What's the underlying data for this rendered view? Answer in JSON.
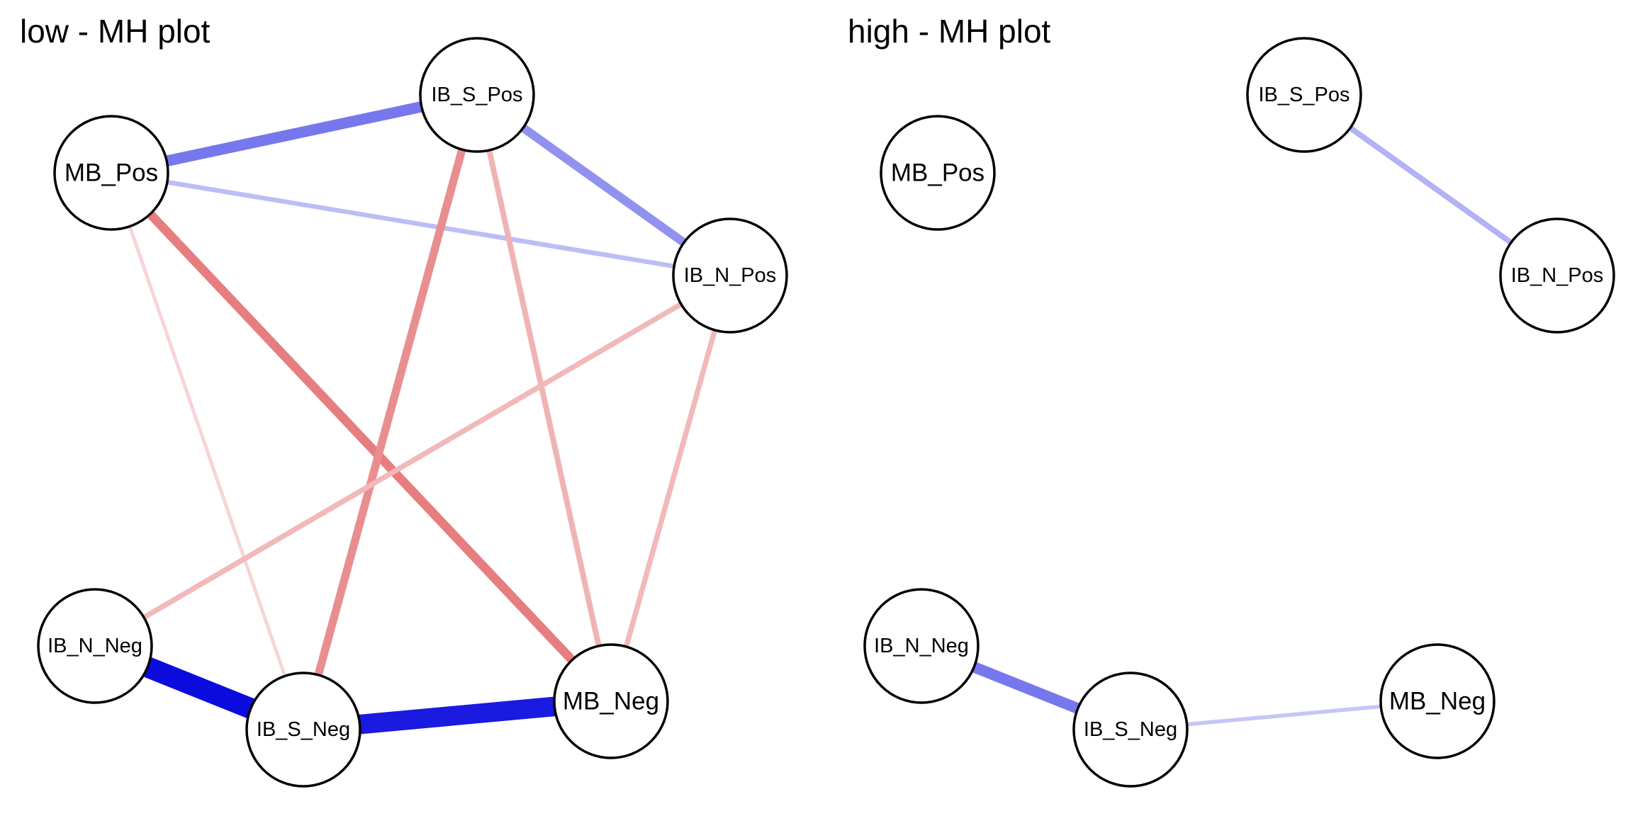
{
  "panels": [
    {
      "id": "low",
      "title": "low - MH plot",
      "nodes": [
        {
          "id": "IB_S_Pos",
          "label": "IB_S_Pos"
        },
        {
          "id": "MB_Pos",
          "label": "MB_Pos"
        },
        {
          "id": "IB_N_Pos",
          "label": "IB_N_Pos"
        },
        {
          "id": "IB_N_Neg",
          "label": "IB_N_Neg"
        },
        {
          "id": "IB_S_Neg",
          "label": "IB_S_Neg"
        },
        {
          "id": "MB_Neg",
          "label": "MB_Neg"
        }
      ],
      "edges": [
        {
          "from": "MB_Pos",
          "to": "IB_S_Pos",
          "sign": "positive",
          "weight": 0.45
        },
        {
          "from": "IB_S_Pos",
          "to": "IB_N_Pos",
          "sign": "positive",
          "weight": 0.33
        },
        {
          "from": "MB_Pos",
          "to": "IB_N_Pos",
          "sign": "positive",
          "weight": 0.13
        },
        {
          "from": "MB_Pos",
          "to": "MB_Neg",
          "sign": "negative",
          "weight": 0.35
        },
        {
          "from": "MB_Pos",
          "to": "IB_S_Neg",
          "sign": "negative",
          "weight": 0.07
        },
        {
          "from": "IB_S_Pos",
          "to": "IB_S_Neg",
          "sign": "negative",
          "weight": 0.3
        },
        {
          "from": "IB_S_Pos",
          "to": "MB_Neg",
          "sign": "negative",
          "weight": 0.18
        },
        {
          "from": "IB_N_Pos",
          "to": "IB_N_Neg",
          "sign": "negative",
          "weight": 0.16
        },
        {
          "from": "IB_N_Pos",
          "to": "MB_Neg",
          "sign": "negative",
          "weight": 0.16
        },
        {
          "from": "IB_N_Neg",
          "to": "IB_S_Neg",
          "sign": "positive",
          "weight": 0.95
        },
        {
          "from": "IB_S_Neg",
          "to": "MB_Neg",
          "sign": "positive",
          "weight": 0.88
        }
      ]
    },
    {
      "id": "high",
      "title": "high - MH plot",
      "nodes": [
        {
          "id": "IB_S_Pos",
          "label": "IB_S_Pos"
        },
        {
          "id": "MB_Pos",
          "label": "MB_Pos"
        },
        {
          "id": "IB_N_Pos",
          "label": "IB_N_Pos"
        },
        {
          "id": "IB_N_Neg",
          "label": "IB_N_Neg"
        },
        {
          "id": "IB_S_Neg",
          "label": "IB_S_Neg"
        },
        {
          "id": "MB_Neg",
          "label": "MB_Neg"
        }
      ],
      "edges": [
        {
          "from": "IB_S_Pos",
          "to": "IB_N_Pos",
          "sign": "positive",
          "weight": 0.18
        },
        {
          "from": "IB_N_Neg",
          "to": "IB_S_Neg",
          "sign": "positive",
          "weight": 0.45
        },
        {
          "from": "IB_S_Neg",
          "to": "MB_Neg",
          "sign": "positive",
          "weight": 0.09
        }
      ]
    }
  ],
  "colors": {
    "positive": "#0000dd",
    "negative": "#d8393c",
    "node_fill": "#ffffff",
    "node_stroke": "#000000"
  }
}
